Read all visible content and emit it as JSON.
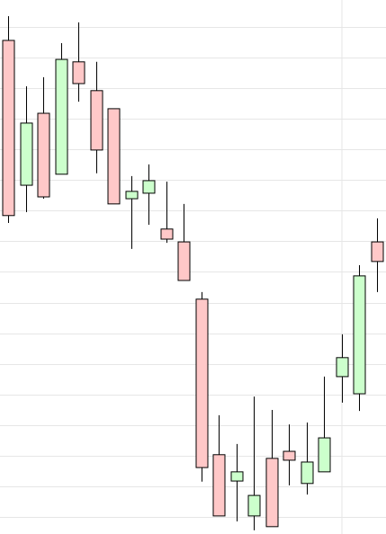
{
  "chart_data": {
    "type": "candlestick",
    "categories": [
      null,
      null,
      null,
      null,
      null,
      null,
      null,
      null,
      null,
      null,
      null,
      null,
      null,
      null,
      null,
      null,
      null,
      null,
      null,
      null,
      null,
      null
    ],
    "open": [
      16.56,
      11.83,
      14.18,
      12.19,
      15.86,
      14.92,
      14.33,
      11.39,
      11.57,
      10.4,
      9.98,
      8.11,
      3.03,
      2.17,
      1.03,
      2.91,
      3.14,
      2.09,
      2.47,
      5.58,
      5.02,
      9.98
    ],
    "close": [
      10.84,
      13.86,
      11.45,
      15.94,
      15.15,
      12.98,
      11.22,
      11.63,
      11.98,
      10.07,
      8.72,
      2.61,
      1.03,
      2.47,
      1.7,
      0.68,
      2.85,
      2.79,
      3.58,
      6.2,
      8.87,
      9.34
    ],
    "high": [
      17.35,
      15.06,
      15.36,
      16.47,
      17.15,
      15.86,
      14.33,
      12.13,
      12.51,
      11.95,
      11.22,
      8.34,
      4.32,
      3.38,
      4.93,
      4.49,
      4.02,
      4.08,
      5.58,
      6.96,
      9.22,
      10.75
    ],
    "low": [
      10.6,
      10.95,
      11.39,
      12.19,
      14.56,
      12.22,
      11.22,
      9.75,
      10.54,
      9.95,
      8.72,
      2.15,
      1.03,
      0.85,
      0.56,
      0.68,
      2.03,
      1.73,
      2.47,
      4.73,
      4.46,
      8.34
    ],
    "up_color": "#ccffcc",
    "down_color": "#ffc8c8",
    "ylim": [
      0.44,
      17.88
    ],
    "yticks": [
      1,
      2,
      3,
      4,
      5,
      6,
      7,
      8,
      9,
      10,
      11,
      12,
      13,
      14,
      15,
      16,
      17
    ],
    "grid": true
  }
}
